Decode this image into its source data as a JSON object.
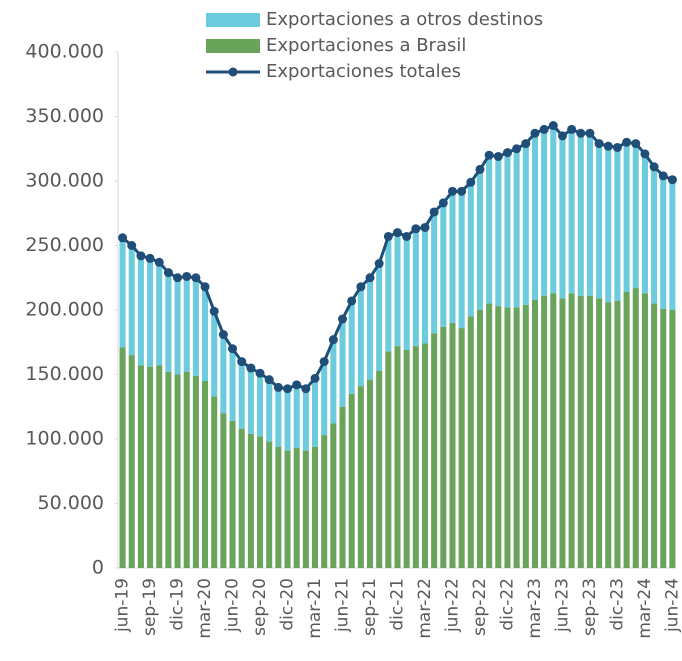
{
  "chart_data": {
    "type": "bar",
    "stacked": true,
    "categories": [
      "jun-19",
      null,
      null,
      "sep-19",
      null,
      null,
      "dic-19",
      null,
      null,
      "mar-20",
      null,
      null,
      "jun-20",
      null,
      null,
      "sep-20",
      null,
      null,
      "dic-20",
      null,
      null,
      "mar-21",
      null,
      null,
      "jun-21",
      null,
      null,
      "sep-21",
      null,
      null,
      "dic-21",
      null,
      null,
      "mar-22",
      null,
      null,
      "jun-22",
      null,
      null,
      "sep-22",
      null,
      null,
      "dic-22",
      null,
      null,
      "mar-23",
      null,
      null,
      "jun-23",
      null,
      null,
      "sep-23",
      null,
      null,
      "dic-23",
      null,
      null,
      "mar-24",
      null,
      null,
      "jun-24"
    ],
    "series": [
      {
        "name": "Exportaciones a otros destinos",
        "type": "bar",
        "color": "#6ccbdc",
        "values": [
          85000,
          85000,
          85000,
          84000,
          80000,
          77000,
          75000,
          74000,
          76000,
          73000,
          66000,
          61000,
          56000,
          52000,
          51000,
          49000,
          48000,
          46000,
          48000,
          49000,
          48000,
          53000,
          57000,
          65000,
          68000,
          72000,
          77000,
          79000,
          83000,
          89000,
          88000,
          88000,
          91000,
          90000,
          94000,
          96000,
          102000,
          106000,
          104000,
          109000,
          115000,
          116000,
          120000,
          123000,
          125000,
          129000,
          129000,
          130000,
          126000,
          127000,
          126000,
          126000,
          120000,
          121000,
          119000,
          116000,
          112000,
          108000,
          106000,
          103000,
          101000
        ]
      },
      {
        "name": "Exportaciones a Brasil",
        "type": "bar",
        "color": "#6aa35a",
        "values": [
          171000,
          165000,
          157000,
          156000,
          157000,
          152000,
          150000,
          152000,
          149000,
          145000,
          133000,
          120000,
          114000,
          108000,
          104000,
          102000,
          98000,
          94000,
          91000,
          93000,
          91000,
          94000,
          103000,
          112000,
          125000,
          135000,
          141000,
          146000,
          153000,
          168000,
          172000,
          169000,
          172000,
          174000,
          182000,
          187000,
          190000,
          186000,
          195000,
          200000,
          205000,
          203000,
          202000,
          202000,
          204000,
          208000,
          211000,
          213000,
          209000,
          213000,
          211000,
          211000,
          209000,
          206000,
          207000,
          214000,
          217000,
          213000,
          205000,
          201000,
          200000
        ]
      },
      {
        "name": "Exportaciones totales",
        "type": "line",
        "color": "#1f4e79",
        "values": [
          256000,
          250000,
          242000,
          240000,
          237000,
          229000,
          225000,
          226000,
          225000,
          218000,
          199000,
          181000,
          170000,
          160000,
          155000,
          151000,
          146000,
          140000,
          139000,
          142000,
          139000,
          147000,
          160000,
          177000,
          193000,
          207000,
          218000,
          225000,
          236000,
          257000,
          260000,
          257000,
          263000,
          264000,
          276000,
          283000,
          292000,
          292000,
          299000,
          309000,
          320000,
          319000,
          322000,
          325000,
          329000,
          337000,
          340000,
          343000,
          335000,
          340000,
          337000,
          337000,
          329000,
          327000,
          326000,
          330000,
          329000,
          321000,
          311000,
          304000,
          301000
        ]
      }
    ],
    "ylim": [
      0,
      400000
    ],
    "yticks": [
      0,
      {
        "value": 50000,
        "label": "50.000"
      },
      {
        "value": 100000,
        "label": "100.000"
      },
      {
        "value": 150000,
        "label": "150.000"
      },
      {
        "value": 200000,
        "label": "200.000"
      },
      {
        "value": 250000,
        "label": "250.000"
      },
      {
        "value": 300000,
        "label": "300.000"
      },
      {
        "value": 350000,
        "label": "350.000"
      },
      {
        "value": 400000,
        "label": "400.000"
      }
    ],
    "legend": "top",
    "grid": false
  }
}
